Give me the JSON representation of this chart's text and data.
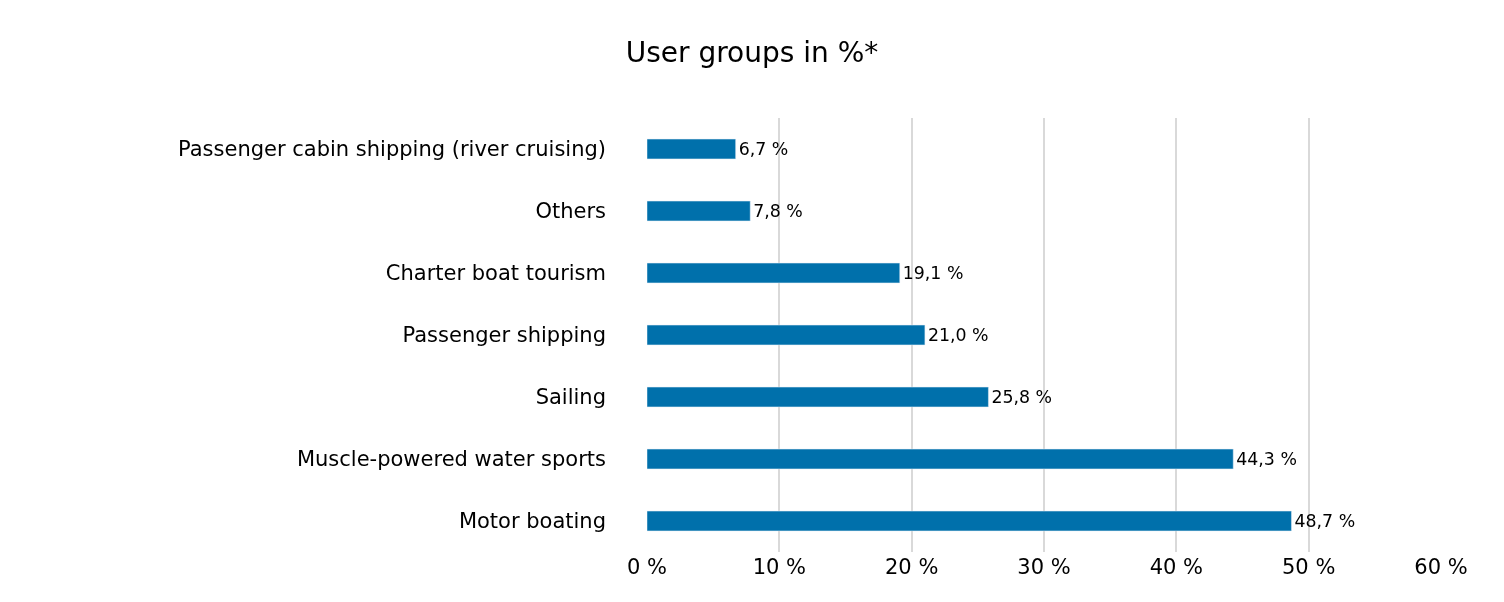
{
  "chart_data": {
    "type": "bar",
    "orientation": "horizontal",
    "title": "User groups in %*",
    "categories": [
      "Passenger cabin shipping (river cruising)",
      "Others",
      "Charter boat tourism",
      "Passenger shipping",
      "Sailing",
      "Muscle-powered water sports",
      "Motor boating"
    ],
    "values": [
      6.7,
      7.8,
      19.1,
      21.0,
      25.8,
      44.3,
      48.7
    ],
    "value_labels": [
      "6,7 %",
      "7,8 %",
      "19,1 %",
      "21,0 %",
      "25,8 %",
      "44,3 %",
      "48,7 %"
    ],
    "color": "#0070ab",
    "xlim": [
      0,
      60
    ],
    "xticks": [
      {
        "value": 0,
        "label": "0 %"
      },
      {
        "value": 10,
        "label": "10 %"
      },
      {
        "value": 20,
        "label": "20 %"
      },
      {
        "value": 30,
        "label": "30 %"
      },
      {
        "value": 40,
        "label": "40 %"
      },
      {
        "value": 50,
        "label": "50 %"
      },
      {
        "value": 60,
        "label": "60 %"
      }
    ],
    "grid": "x",
    "legend": false
  }
}
